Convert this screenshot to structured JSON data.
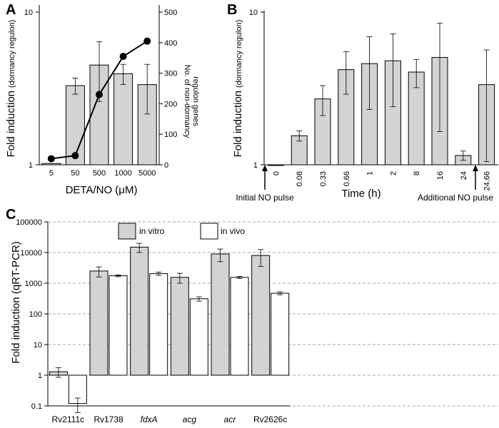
{
  "chart_data": [
    {
      "panel": "A",
      "type": "bar",
      "categories": [
        "5",
        "50",
        "500",
        "1000",
        "5000"
      ],
      "values": [
        1.02,
        3.3,
        4.5,
        3.95,
        3.35
      ],
      "errors": [
        0.02,
        0.4,
        1.9,
        0.6,
        1.2
      ],
      "yscale": "log",
      "ylim": [
        1,
        10
      ],
      "ylabel_main": "Fold induction",
      "ylabel_sub": "(dormancy regulon)",
      "y_ticks": [
        "1",
        "10"
      ],
      "xlabel_prefix": "DETA/NO (",
      "xlabel_unit": "μM",
      "xlabel_suffix": ")",
      "line": {
        "values": [
          20,
          30,
          230,
          355,
          405
        ],
        "ylim": [
          0,
          500
        ],
        "y_ticks": [
          "0",
          "100",
          "200",
          "300",
          "400",
          "500"
        ],
        "ylabel_line1": "No. of non-dormancy",
        "ylabel_line2": "regulon genes"
      },
      "bar_color": "#d3d3d3"
    },
    {
      "panel": "B",
      "type": "bar",
      "categories": [
        "0",
        "0.08",
        "0.33",
        "0.66",
        "1",
        "2",
        "8",
        "16",
        "24",
        "24.66"
      ],
      "values": [
        1.0,
        1.55,
        2.7,
        4.2,
        4.6,
        4.8,
        4.05,
        5.05,
        1.15,
        3.35
      ],
      "errors": [
        0.02,
        0.12,
        0.6,
        1.3,
        2.3,
        2.4,
        0.85,
        3.4,
        0.08,
        2.3
      ],
      "yscale": "log",
      "ylim": [
        1,
        10
      ],
      "ylabel_main": "Fold induction",
      "ylabel_sub": "(dormancy regulon)",
      "y_ticks": [
        "1",
        "10"
      ],
      "xlabel": "Time (h)",
      "annotations": [
        "Initial NO pulse",
        "Additional NO pulse"
      ],
      "bar_color": "#d3d3d3"
    },
    {
      "panel": "C",
      "type": "bar",
      "categories": [
        "Rv2111c",
        "Rv1738",
        "fdxA",
        "acg",
        "acr",
        "Rv2626c"
      ],
      "italic_categories": [
        false,
        false,
        true,
        true,
        true,
        false
      ],
      "yscale": "log",
      "ylim": [
        0.1,
        100000
      ],
      "y_ticks": [
        "0.1",
        "1",
        "10",
        "100",
        "1000",
        "10000",
        "100000"
      ],
      "ylabel": "Fold induction (qRT-PCR)",
      "grid": true,
      "legend": "top",
      "series": [
        {
          "name": "in vitro",
          "values": [
            1.3,
            2500,
            15000,
            1550,
            9000,
            8000
          ],
          "errors": [
            0.45,
            900,
            5000,
            550,
            4000,
            4500
          ],
          "color": "#d3d3d3"
        },
        {
          "name": "in vivo",
          "values": [
            0.12,
            1750,
            2050,
            310,
            1550,
            470
          ],
          "errors": [
            0.06,
            120,
            250,
            50,
            120,
            50
          ],
          "color": "#ffffff"
        }
      ]
    }
  ],
  "panel_letters": [
    "A",
    "B",
    "C"
  ]
}
